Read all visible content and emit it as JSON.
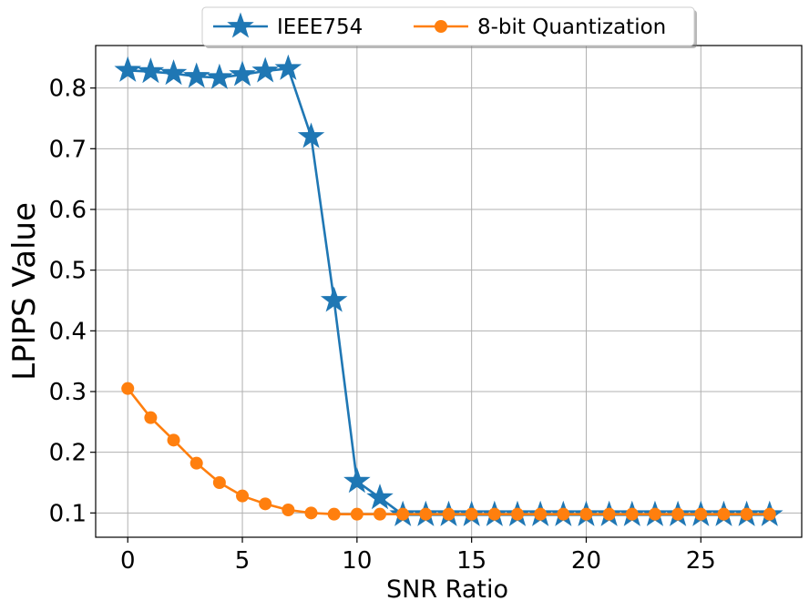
{
  "chart_data": {
    "type": "line",
    "title": "",
    "xlabel": "SNR Ratio",
    "ylabel": "LPIPS Value",
    "xlim": [
      -1.4,
      29.4
    ],
    "ylim": [
      0.06,
      0.87
    ],
    "grid": true,
    "legend_position": "top-center",
    "x_ticks": [
      0,
      5,
      10,
      15,
      20,
      25
    ],
    "x_tick_labels": [
      "0",
      "5",
      "10",
      "15",
      "20",
      "25"
    ],
    "y_ticks": [
      0.1,
      0.2,
      0.3,
      0.4,
      0.5,
      0.6,
      0.7,
      0.8
    ],
    "y_tick_labels": [
      "0.1",
      "0.2",
      "0.3",
      "0.4",
      "0.5",
      "0.6",
      "0.7",
      "0.8"
    ],
    "x": [
      0,
      1,
      2,
      3,
      4,
      5,
      6,
      7,
      8,
      9,
      10,
      11,
      12,
      13,
      14,
      15,
      16,
      17,
      18,
      19,
      20,
      21,
      22,
      23,
      24,
      25,
      26,
      27,
      28
    ],
    "series": [
      {
        "name": "IEEE754",
        "color": "#1f77b4",
        "marker": "star",
        "values": [
          0.829,
          0.827,
          0.824,
          0.819,
          0.817,
          0.822,
          0.828,
          0.832,
          0.72,
          0.45,
          0.152,
          0.125,
          0.097,
          0.097,
          0.097,
          0.097,
          0.097,
          0.097,
          0.097,
          0.097,
          0.097,
          0.097,
          0.097,
          0.097,
          0.097,
          0.097,
          0.097,
          0.097,
          0.097
        ]
      },
      {
        "name": "8-bit Quantization",
        "color": "#ff7f0e",
        "marker": "circle",
        "values": [
          0.305,
          0.257,
          0.22,
          0.182,
          0.15,
          0.128,
          0.115,
          0.105,
          0.1,
          0.098,
          0.098,
          0.098,
          0.098,
          0.098,
          0.098,
          0.098,
          0.098,
          0.098,
          0.098,
          0.098,
          0.098,
          0.098,
          0.098,
          0.098,
          0.098,
          0.098,
          0.098,
          0.098,
          0.098
        ]
      }
    ]
  }
}
